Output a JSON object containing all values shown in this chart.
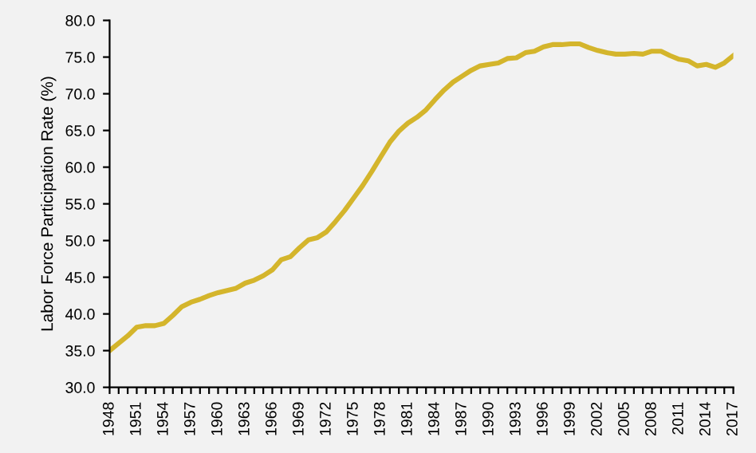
{
  "chart_data": {
    "type": "line",
    "ylabel": "Labor Force Participation Rate (%)",
    "categories": [
      "1948",
      null,
      null,
      "1951",
      null,
      null,
      "1954",
      null,
      null,
      "1957",
      null,
      null,
      "1960",
      null,
      null,
      "1963",
      null,
      null,
      "1966",
      null,
      null,
      "1969",
      null,
      null,
      "1972",
      null,
      null,
      "1975",
      null,
      null,
      "1978",
      null,
      null,
      "1981",
      null,
      null,
      "1984",
      null,
      null,
      "1987",
      null,
      null,
      "1990",
      null,
      null,
      "1993",
      null,
      null,
      "1996",
      null,
      null,
      "1999",
      null,
      null,
      "2002",
      null,
      null,
      "2005",
      null,
      null,
      "2008",
      null,
      null,
      "2011",
      null,
      null,
      "2014",
      null,
      null,
      "2017"
    ],
    "series": [
      {
        "color": "#d4b52c",
        "values": [
          35.0,
          36.0,
          37.0,
          38.2,
          38.4,
          38.4,
          38.7,
          39.8,
          41.0,
          41.6,
          42.0,
          42.5,
          42.9,
          43.2,
          43.5,
          44.2,
          44.6,
          45.2,
          46.0,
          47.4,
          47.8,
          49.0,
          50.1,
          50.4,
          51.2,
          52.6,
          54.1,
          55.8,
          57.5,
          59.4,
          61.4,
          63.4,
          64.9,
          66.0,
          66.8,
          67.8,
          69.2,
          70.5,
          71.6,
          72.4,
          73.2,
          73.8,
          74.0,
          74.2,
          74.8,
          74.9,
          75.6,
          75.8,
          76.4,
          76.7,
          76.7,
          76.8,
          76.8,
          76.3,
          75.9,
          75.6,
          75.4,
          75.4,
          75.5,
          75.4,
          75.8,
          75.8,
          75.2,
          74.7,
          74.5,
          73.8,
          74.0,
          73.6,
          74.2,
          75.2
        ]
      }
    ],
    "ylim": [
      30,
      80
    ],
    "yticks": [
      {
        "value": 30,
        "label": "30.0"
      },
      {
        "value": 35,
        "label": "35.0"
      },
      {
        "value": 40,
        "label": "40.0"
      },
      {
        "value": 45,
        "label": "45.0"
      },
      {
        "value": 50,
        "label": "50.0"
      },
      {
        "value": 55,
        "label": "55.0"
      },
      {
        "value": 60,
        "label": "60.0"
      },
      {
        "value": 65,
        "label": "65.0"
      },
      {
        "value": 70,
        "label": "70.0"
      },
      {
        "value": 75,
        "label": "75.0"
      },
      {
        "value": 80,
        "label": "80.0"
      }
    ],
    "grid": false,
    "legend": false,
    "marker": "none",
    "line_style": "solid"
  }
}
